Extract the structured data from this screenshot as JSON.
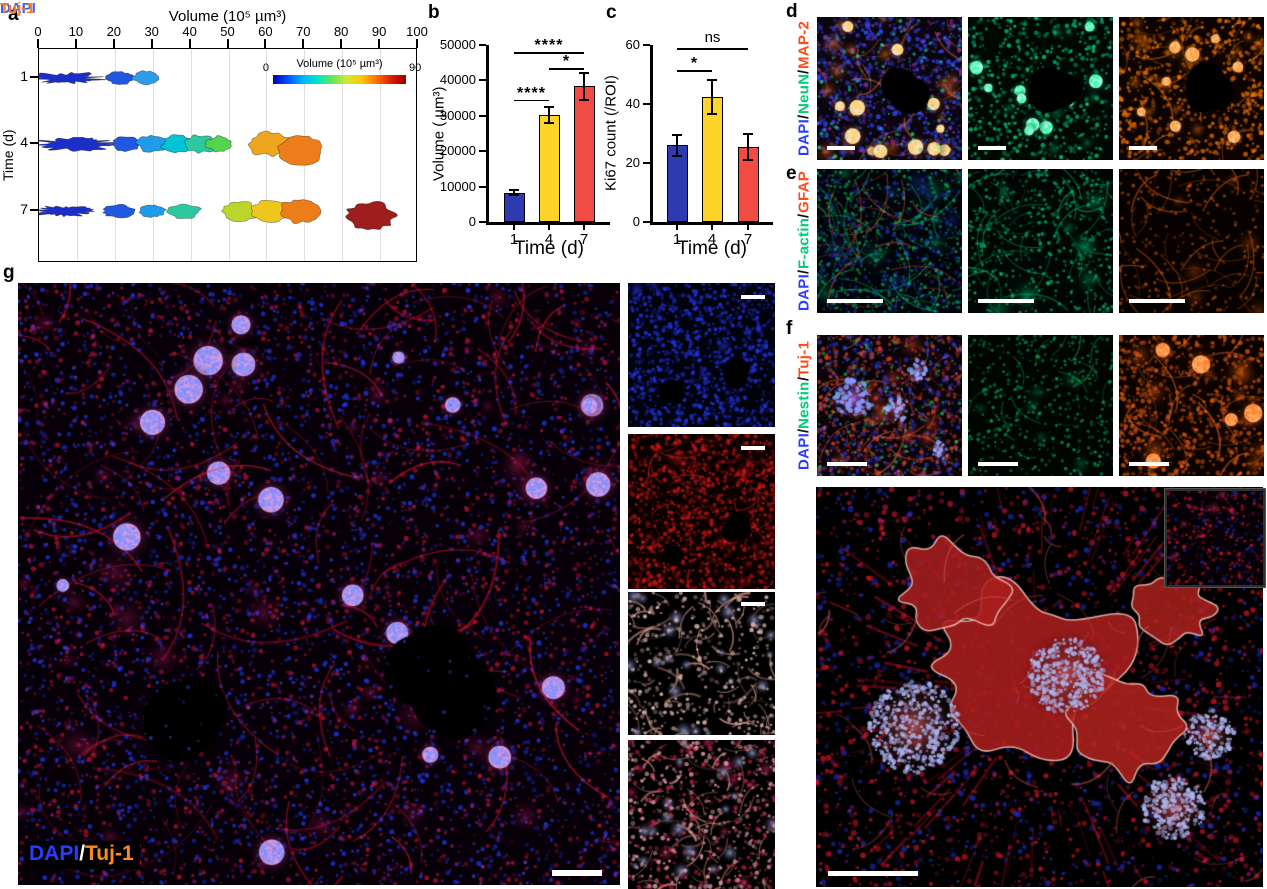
{
  "panel_a": {
    "label": "a",
    "axis_title": "Volume (10⁵ µm³)",
    "x_ticks": [
      "0",
      "10",
      "20",
      "30",
      "40",
      "50",
      "60",
      "70",
      "80",
      "90",
      "100"
    ],
    "x_range": [
      0,
      100
    ],
    "y_axis_label": "Time (d)",
    "row_labels": [
      "1",
      "4",
      "7"
    ],
    "colorbar": {
      "title": "Volume (10⁵ µm³)",
      "min_label": "0",
      "max_label": "90",
      "gradient": [
        "#0000b4",
        "#0050ff",
        "#00b4ff",
        "#00e6c8",
        "#64e65a",
        "#d2e632",
        "#ffc800",
        "#ff6e00",
        "#dc1e00",
        "#960000"
      ]
    },
    "blobs": [
      {
        "row": 0,
        "items": [
          {
            "c": 7.5,
            "w": 16,
            "h": 10,
            "color": "#1c2ec8",
            "chain": true
          },
          {
            "c": 21.5,
            "w": 7,
            "h": 12,
            "color": "#2356e0"
          },
          {
            "c": 28,
            "w": 6.5,
            "h": 13,
            "color": "#2e9de8"
          }
        ]
      },
      {
        "row": 1,
        "items": [
          {
            "c": 9,
            "w": 20,
            "h": 11,
            "color": "#1c2ec8",
            "chain": true
          },
          {
            "c": 23,
            "w": 7,
            "h": 14,
            "color": "#2158e2"
          },
          {
            "c": 30,
            "w": 8,
            "h": 16,
            "color": "#1e9ce8"
          },
          {
            "c": 36.5,
            "w": 8,
            "h": 17,
            "color": "#00c4d4"
          },
          {
            "c": 42.5,
            "w": 8,
            "h": 18,
            "color": "#2cc9a0"
          },
          {
            "c": 47.5,
            "w": 7,
            "h": 15,
            "color": "#55d24e"
          },
          {
            "c": 61,
            "w": 11,
            "h": 24,
            "color": "#eda61e"
          },
          {
            "c": 69,
            "w": 12,
            "h": 28,
            "color": "#ec7d18",
            "dy": 6
          }
        ]
      },
      {
        "row": 2,
        "items": [
          {
            "c": 6.5,
            "w": 14,
            "h": 9,
            "color": "#1c2ec8",
            "chain": true
          },
          {
            "c": 21,
            "w": 8,
            "h": 13,
            "color": "#2158e2"
          },
          {
            "c": 30,
            "w": 7,
            "h": 12,
            "color": "#1e9ce8"
          },
          {
            "c": 38,
            "w": 9,
            "h": 14,
            "color": "#2cc9a0"
          },
          {
            "c": 53,
            "w": 9,
            "h": 19,
            "color": "#bcd52c"
          },
          {
            "c": 61.5,
            "w": 10,
            "h": 21,
            "color": "#eec61e"
          },
          {
            "c": 69,
            "w": 10,
            "h": 23,
            "color": "#ec7d18"
          },
          {
            "c": 87.5,
            "w": 13,
            "h": 27,
            "color": "#9e1e1e",
            "dy": 5
          }
        ]
      }
    ]
  },
  "chart_data": [
    {
      "id": "b",
      "panel_label": "b",
      "type": "bar",
      "categories": [
        "1",
        "4",
        "7"
      ],
      "values": [
        8300,
        30300,
        38300
      ],
      "errors": [
        600,
        2300,
        3700
      ],
      "bar_colors": [
        "#2e3bb0",
        "#fed42a",
        "#f04c43"
      ],
      "xlabel": "Time (d)",
      "ylabel": "Volume ( µm³)",
      "ylim": [
        0,
        50000
      ],
      "yticks": [
        "0",
        "10000",
        "20000",
        "30000",
        "40000",
        "50000"
      ],
      "significance": [
        {
          "from": 0,
          "to": 2,
          "y": 48000,
          "label": "****"
        },
        {
          "from": 1,
          "to": 2,
          "y": 43500,
          "label": "*"
        },
        {
          "from": 0,
          "to": 1,
          "y": 34500,
          "label": "****"
        }
      ]
    },
    {
      "id": "c",
      "panel_label": "c",
      "type": "bar",
      "categories": [
        "1",
        "4",
        "7"
      ],
      "values": [
        26,
        42.5,
        25.5
      ],
      "errors": [
        3.5,
        5.8,
        4.5
      ],
      "bar_colors": [
        "#2e3bb0",
        "#fed42a",
        "#f04c43"
      ],
      "xlabel": "Time (d)",
      "ylabel": "Ki67 count (/ROI)",
      "ylim": [
        0,
        60
      ],
      "yticks": [
        "0",
        "20",
        "40",
        "60"
      ],
      "significance": [
        {
          "from": 0,
          "to": 1,
          "y": 51.5,
          "label": "*"
        },
        {
          "from": 0,
          "to": 2,
          "y": 59,
          "label": "ns",
          "ns": true
        }
      ]
    }
  ],
  "panel_d": {
    "label": "d",
    "stain": [
      {
        "text": "DAPI",
        "style": "color:#2a3cff"
      },
      {
        "text": "/",
        "style": "color:#111111"
      },
      {
        "text": "NeuN",
        "style": "color:#00cc7a"
      },
      {
        "text": "/",
        "style": "color:#111111"
      },
      {
        "text": "MAP-2",
        "style": "color:#ff4a1a"
      }
    ]
  },
  "panel_e": {
    "label": "e",
    "stain": [
      {
        "text": "DAPI",
        "style": "color:#2a3cff"
      },
      {
        "text": "/",
        "style": "color:#111111"
      },
      {
        "text": "F-actin",
        "style": "color:#00cc7a"
      },
      {
        "text": "/",
        "style": "color:#111111"
      },
      {
        "text": "GFAP",
        "style": "color:#ff4a1a"
      }
    ]
  },
  "panel_f": {
    "label": "f",
    "stain": [
      {
        "text": "DAPI",
        "style": "color:#2a3cff"
      },
      {
        "text": "/",
        "style": "color:#111111"
      },
      {
        "text": "Nestin",
        "style": "color:#00cc7a"
      },
      {
        "text": "/",
        "style": "color:#111111"
      },
      {
        "text": "Tuj-1",
        "style": "color:#ff4a1a"
      }
    ]
  },
  "panel_g": {
    "label": "g",
    "overlay": [
      {
        "text": "DAPI",
        "style": "color:#2a3cff"
      },
      {
        "text": "/",
        "style": "color:#ffffff"
      },
      {
        "text": "Tuj-1",
        "style": "color:#ff8c1a"
      }
    ],
    "sub_dapi": {
      "text": "DAPI",
      "style": "color:#3a5bff"
    },
    "sub_tuj": {
      "text": "Tuj-1",
      "style": "color:#ff7a1a"
    }
  }
}
